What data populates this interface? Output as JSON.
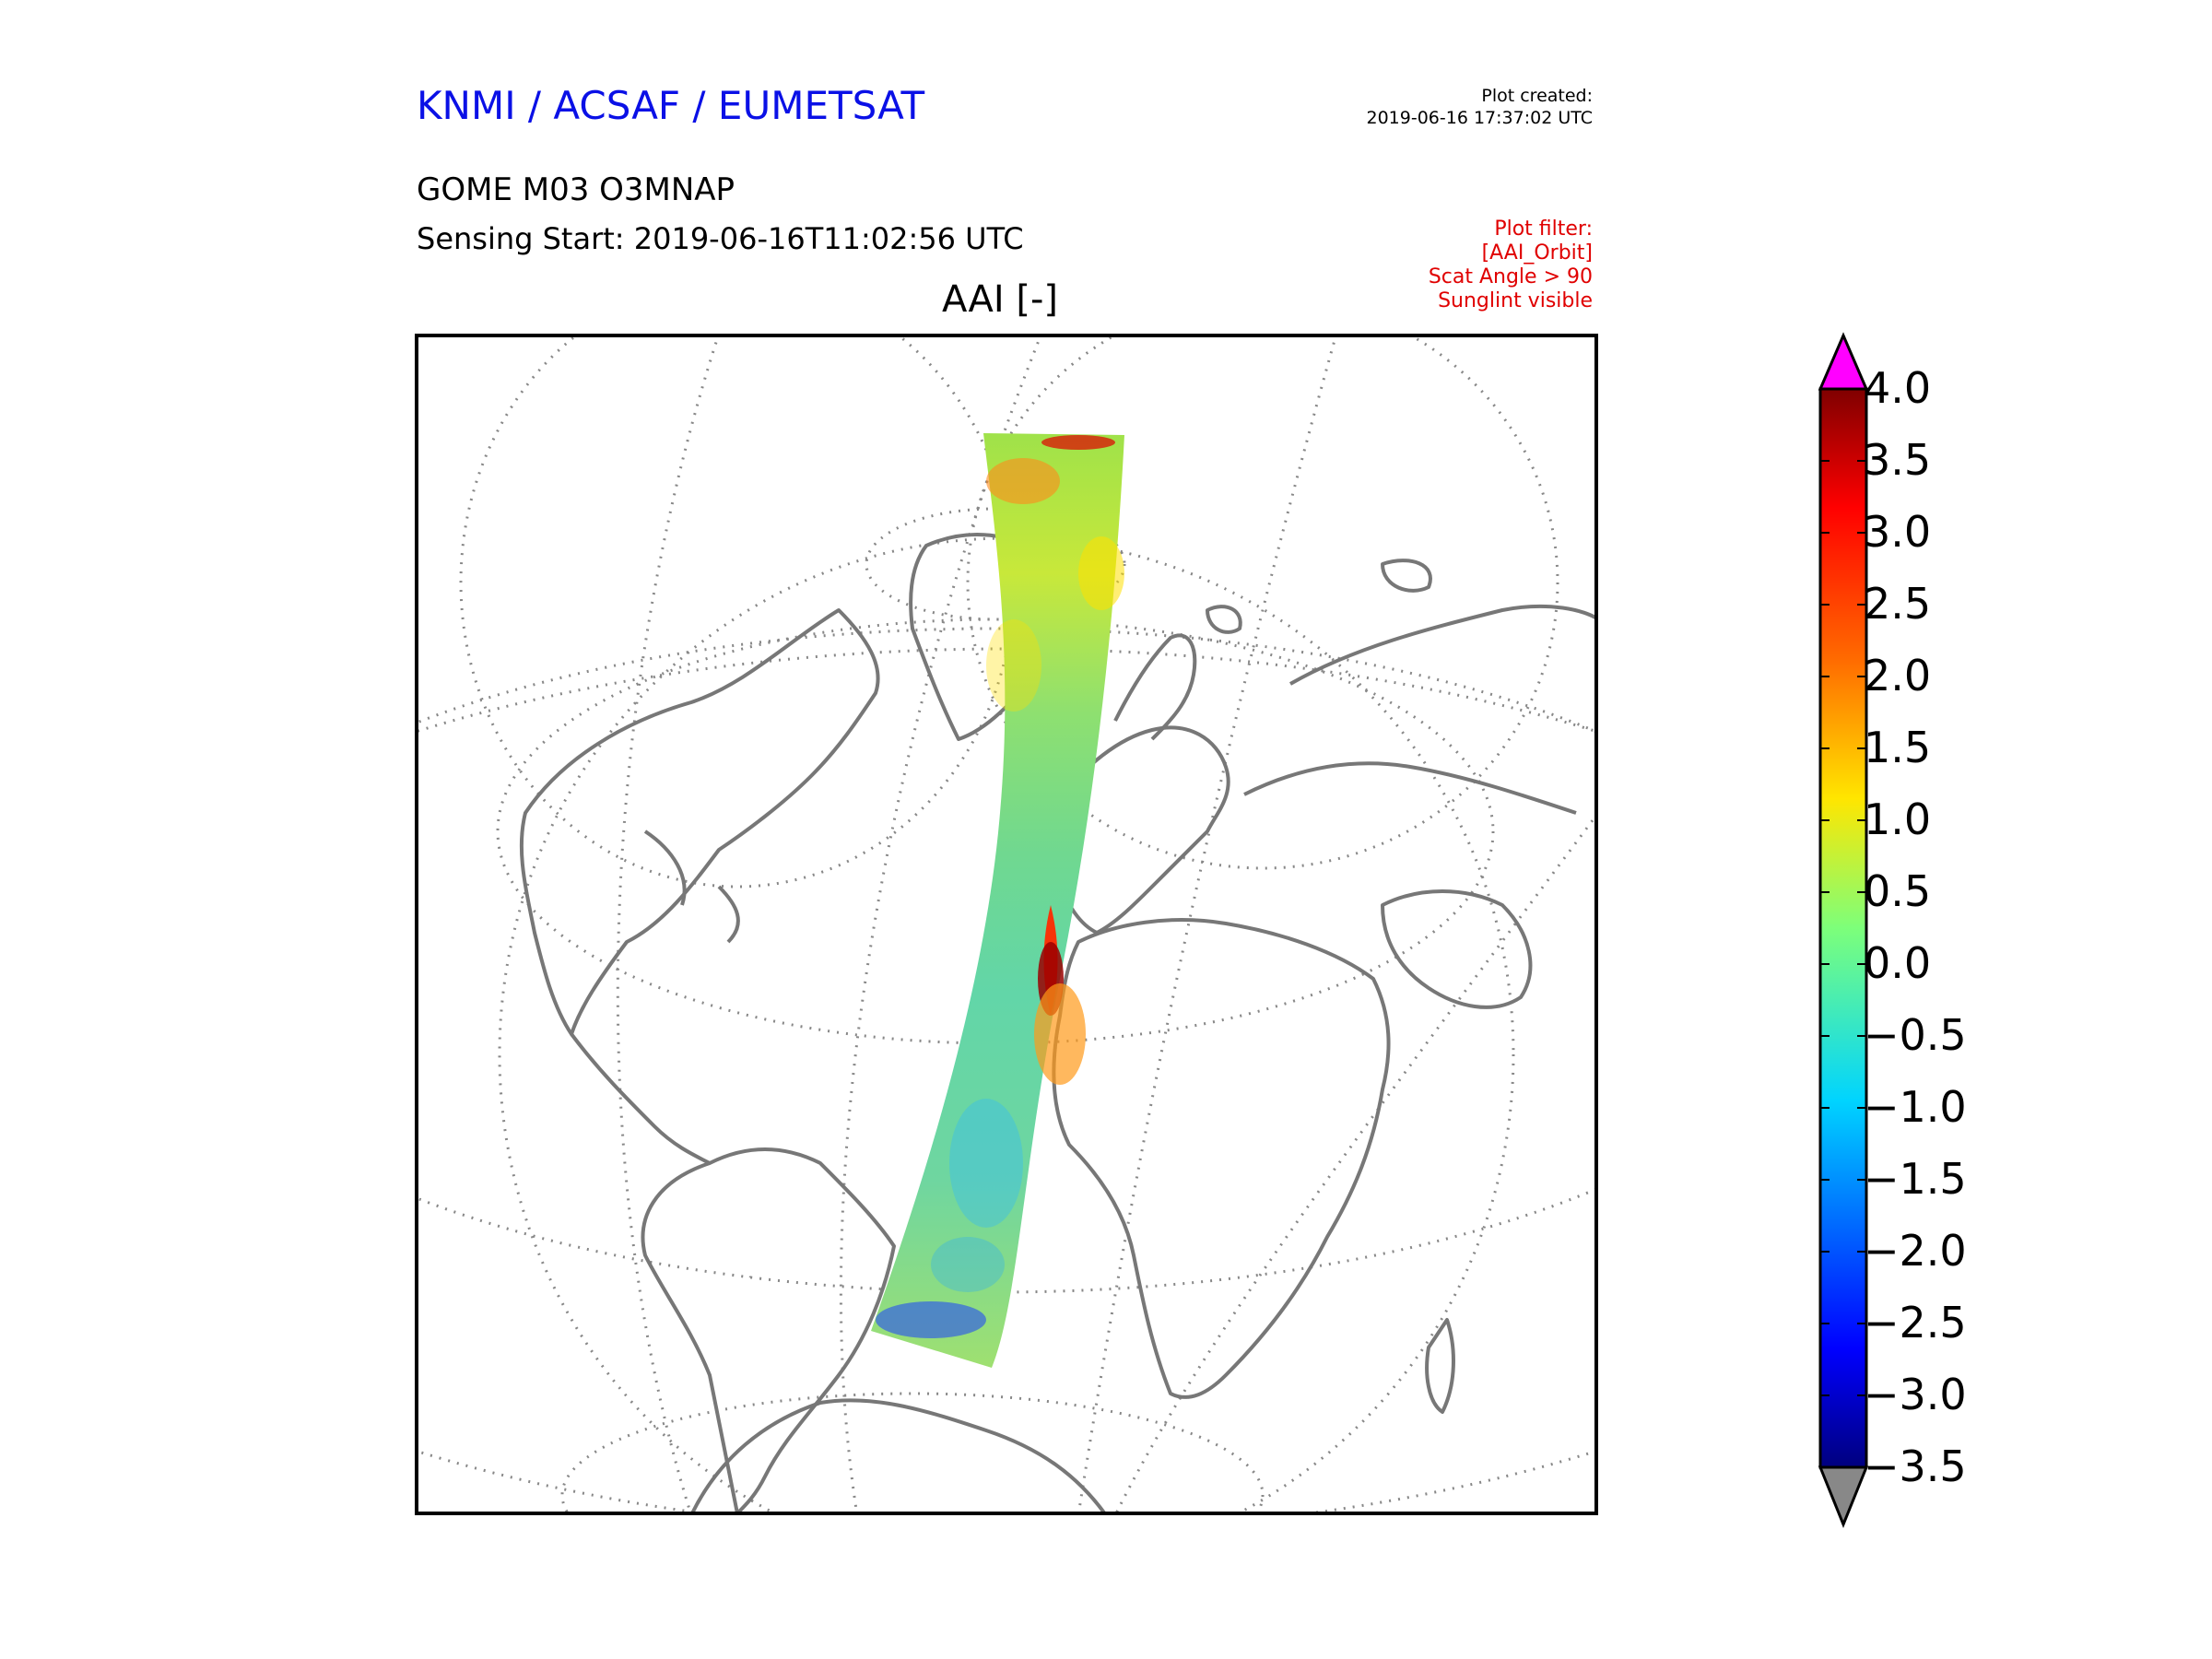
{
  "header": {
    "organizations": "KNMI / ACSAF / EUMETSAT",
    "plot_created_label": "Plot created:",
    "plot_created_value": "2019-06-16 17:37:02 UTC",
    "product": "GOME M03 O3MNAP",
    "sensing_start": "Sensing Start: 2019-06-16T11:02:56 UTC"
  },
  "filter": {
    "lines": [
      "Plot filter:",
      "[AAI_Orbit]",
      "Scat Angle > 90",
      "Sunglint visible"
    ]
  },
  "map": {
    "title": "AAI [-]",
    "coastline_color": "#777777",
    "graticule_color": "#888888"
  },
  "colorbar": {
    "min": -3.5,
    "max": 4.0,
    "over_color": "#ff00ff",
    "under_color": "#888888",
    "ticks": [
      "4.0",
      "3.5",
      "3.0",
      "2.5",
      "2.0",
      "1.5",
      "1.0",
      "0.5",
      "0.0",
      "−0.5",
      "−1.0",
      "−1.5",
      "−2.0",
      "−2.5",
      "−3.0",
      "−3.5"
    ],
    "colormap": [
      "#00007f",
      "#0000ff",
      "#007fff",
      "#00ffff",
      "#7fff7f",
      "#ffff00",
      "#ff7f00",
      "#ff0000",
      "#7f0000"
    ]
  }
}
